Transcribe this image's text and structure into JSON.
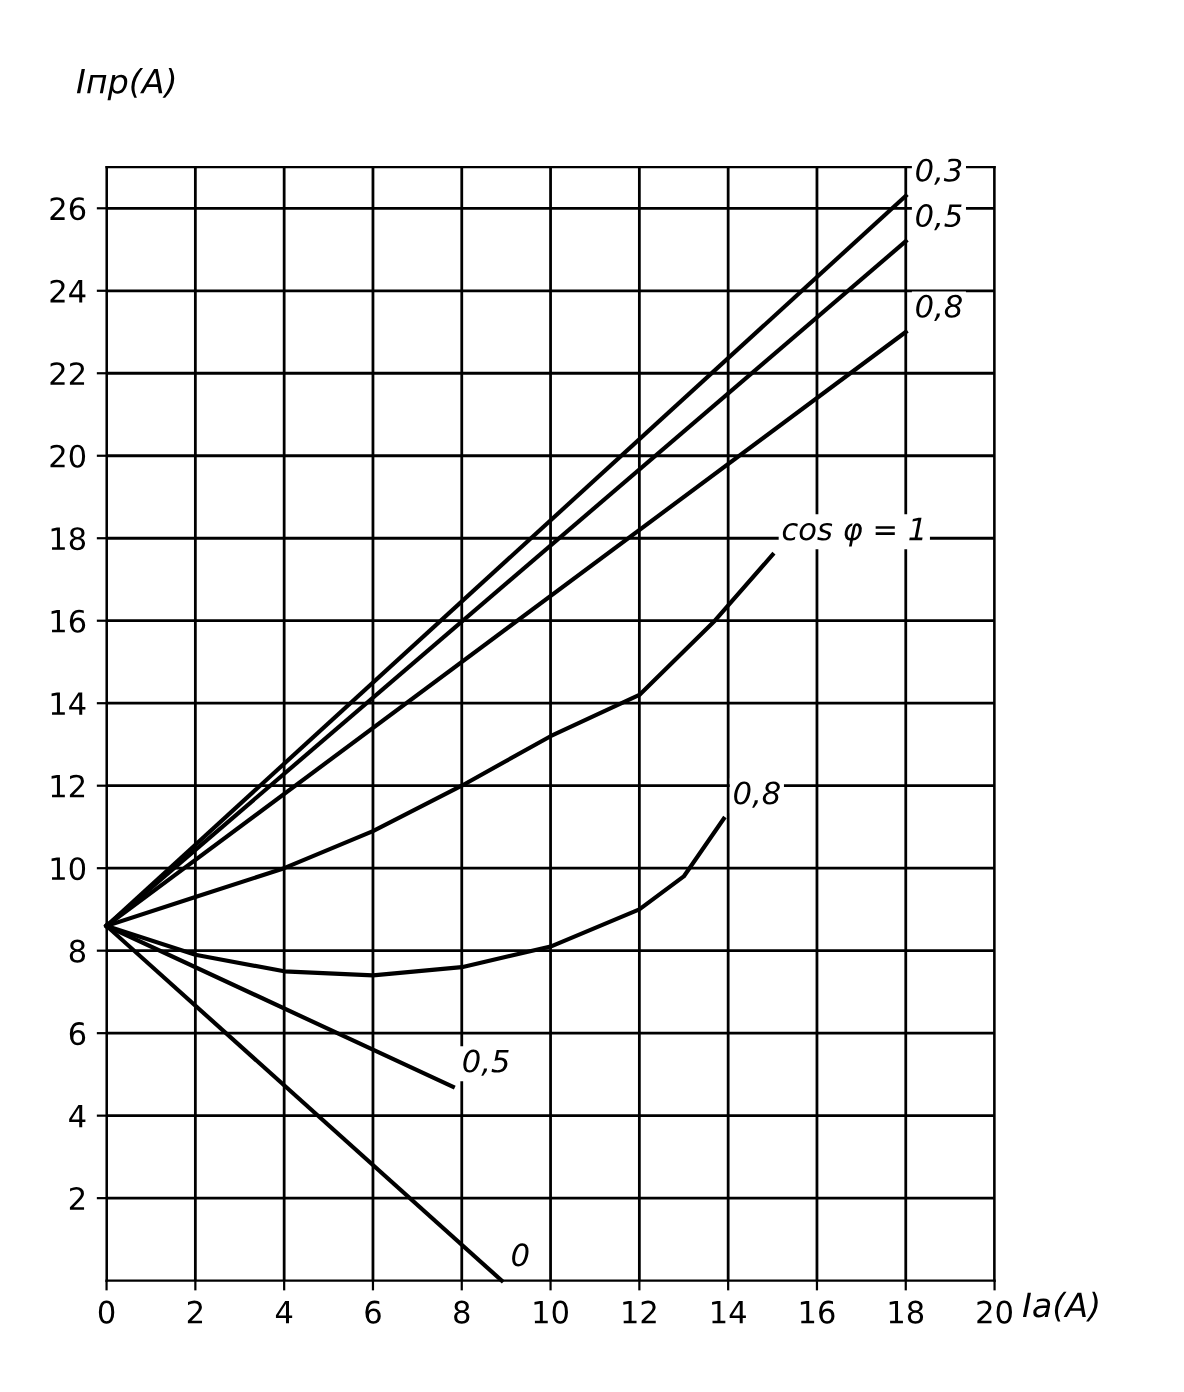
{
  "chart_data": {
    "type": "line",
    "xlabel": "Iа(A)",
    "ylabel": "Iпр(A)",
    "xlim": [
      0,
      20
    ],
    "ylim": [
      0,
      27
    ],
    "xticks": [
      0,
      2,
      4,
      6,
      8,
      10,
      12,
      14,
      16,
      18,
      20
    ],
    "yticks": [
      2,
      4,
      6,
      8,
      10,
      12,
      14,
      16,
      18,
      20,
      22,
      24,
      26
    ],
    "grid": true,
    "legend": false,
    "marker": "none",
    "line_style": "solid",
    "series": [
      {
        "name": "0,3",
        "color": "#000000",
        "x": [
          0,
          18
        ],
        "values": [
          8.6,
          26.3
        ]
      },
      {
        "name": "0,5",
        "color": "#000000",
        "x": [
          0,
          18
        ],
        "values": [
          8.6,
          25.2
        ]
      },
      {
        "name": "0,8",
        "color": "#000000",
        "x": [
          0,
          18
        ],
        "values": [
          8.6,
          23.0
        ]
      },
      {
        "name": "cos φ = 1",
        "color": "#000000",
        "x": [
          0,
          2,
          4,
          6,
          8,
          10,
          12,
          13.7,
          15
        ],
        "values": [
          8.6,
          9.3,
          10,
          10.9,
          12,
          13.2,
          14.2,
          16,
          17.6
        ]
      },
      {
        "name": "0,8",
        "color": "#000000",
        "x": [
          0,
          2,
          4,
          6,
          8,
          10,
          12,
          13,
          13.9
        ],
        "values": [
          8.6,
          7.9,
          7.5,
          7.4,
          7.6,
          8.1,
          9,
          9.8,
          11.2
        ]
      },
      {
        "name": "0,5",
        "color": "#000000",
        "x": [
          0,
          7.8
        ],
        "values": [
          8.6,
          4.7
        ]
      },
      {
        "name": "0",
        "color": "#000000",
        "x": [
          0,
          8.9
        ],
        "values": [
          8.6,
          0
        ]
      }
    ]
  }
}
